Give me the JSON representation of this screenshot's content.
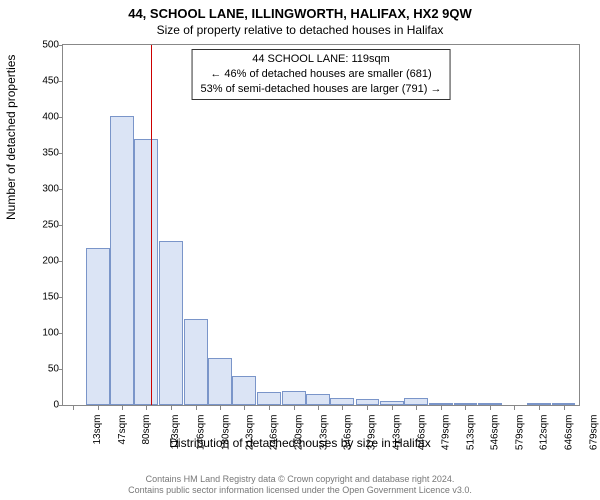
{
  "title_main": "44, SCHOOL LANE, ILLINGWORTH, HALIFAX, HX2 9QW",
  "title_sub": "Size of property relative to detached houses in Halifax",
  "ylabel": "Number of detached properties",
  "xlabel": "Distribution of detached houses by size in Halifax",
  "callout": {
    "line1": "44 SCHOOL LANE: 119sqm",
    "line2": "← 46% of detached houses are smaller (681)",
    "line3": "53% of semi-detached houses are larger (791) →"
  },
  "footnote_line1": "Contains HM Land Registry data © Crown copyright and database right 2024.",
  "footnote_line2": "Contains public sector information licensed under the Open Government Licence v3.0.",
  "chart": {
    "type": "bar",
    "background_color": "#ffffff",
    "border_color": "#888888",
    "bar_fill": "#dbe4f5",
    "bar_stroke": "#7a95c9",
    "marker_color": "#cc0000",
    "marker_x_value": 119,
    "ylim": [
      0,
      500
    ],
    "yticks": [
      0,
      50,
      100,
      150,
      200,
      250,
      300,
      350,
      400,
      450,
      500
    ],
    "x_labels": [
      "13sqm",
      "47sqm",
      "80sqm",
      "113sqm",
      "146sqm",
      "180sqm",
      "213sqm",
      "246sqm",
      "280sqm",
      "313sqm",
      "346sqm",
      "379sqm",
      "413sqm",
      "446sqm",
      "479sqm",
      "513sqm",
      "546sqm",
      "579sqm",
      "612sqm",
      "646sqm",
      "679sqm"
    ],
    "x_numeric": [
      13,
      47,
      80,
      113,
      146,
      180,
      213,
      246,
      280,
      313,
      346,
      379,
      413,
      446,
      479,
      513,
      546,
      579,
      612,
      646,
      679
    ],
    "x_range": [
      0,
      700
    ],
    "values": [
      0,
      218,
      402,
      370,
      228,
      120,
      65,
      40,
      18,
      20,
      15,
      10,
      8,
      5,
      10,
      3,
      2,
      2,
      0,
      2,
      3
    ],
    "bar_width_ratio": 0.95,
    "label_fontsize": 12,
    "tick_fontsize": 10,
    "title_fontsize": 13
  }
}
